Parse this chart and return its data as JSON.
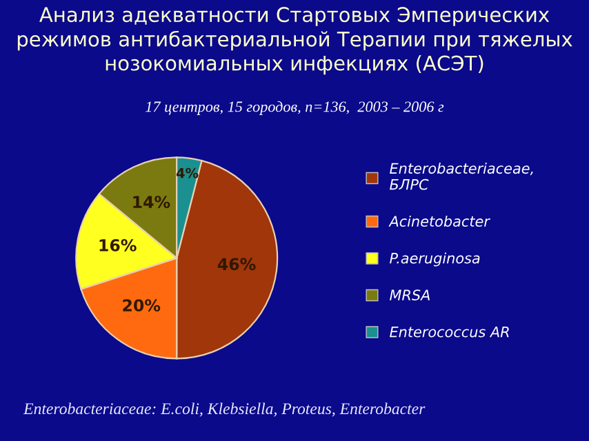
{
  "chart_data": {
    "type": "pie",
    "title": "Анализ адекватности Стартовых Эмперических режимов антибактериальной Терапии при тяжелых нозокомиальных инфекциях (АСЭТ)",
    "subtitle": "17 центров, 15 городов, n=136,  2003 – 2006 г",
    "categories": [
      "Enterobacteriaceae,\nБЛРС",
      "Acinetobacter",
      "P.aeruginosa",
      "MRSA",
      "Enterococcus AR"
    ],
    "values": [
      46,
      20,
      16,
      14,
      4
    ],
    "colors": [
      "#a0360a",
      "#ff6a10",
      "#ffff20",
      "#7a7a10",
      "#1a9090"
    ],
    "value_labels": [
      "46%",
      "20%",
      "16%",
      "14%",
      "4%"
    ],
    "legend": "right",
    "annotations": [
      "Enterobacteriaceae: E.coli, Klebsiella, Proteus, Enterobacter"
    ]
  }
}
